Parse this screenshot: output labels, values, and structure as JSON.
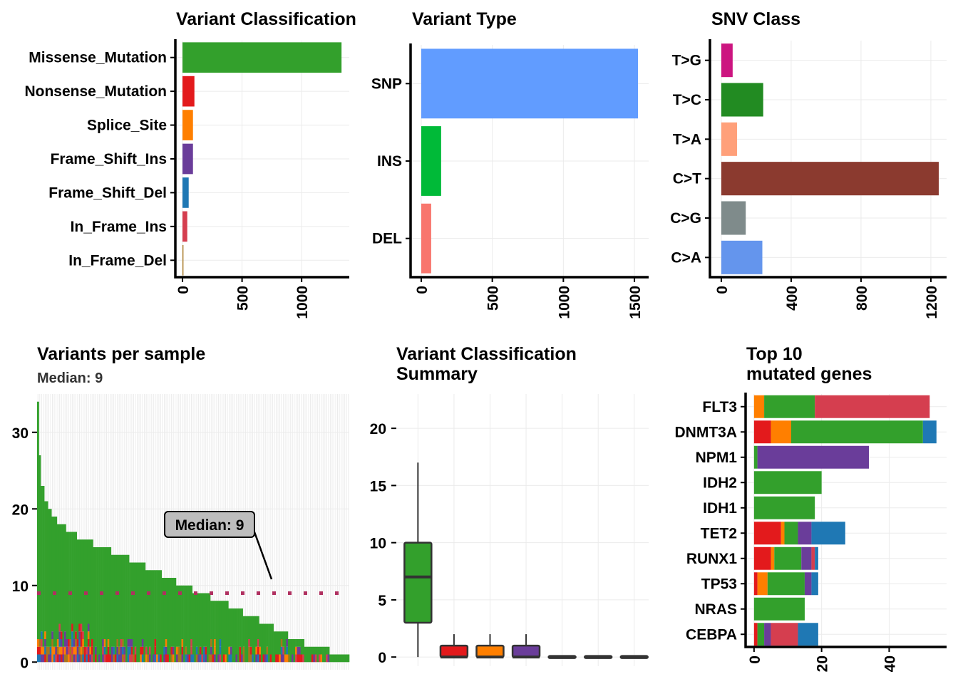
{
  "chart_data": [
    {
      "id": "variant_classification",
      "type": "bar",
      "title": "Variant Classification",
      "orientation": "horizontal",
      "categories": [
        "Missense_Mutation",
        "Nonsense_Mutation",
        "Splice_Site",
        "Frame_Shift_Ins",
        "Frame_Shift_Del",
        "In_Frame_Ins",
        "In_Frame_Del"
      ],
      "values": [
        1335,
        100,
        88,
        88,
        52,
        40,
        8
      ],
      "colors": [
        "#33A02C",
        "#E31A1C",
        "#FF7F00",
        "#6A3D9A",
        "#1F78B4",
        "#D53E4F",
        "#A6761D"
      ],
      "xticks": [
        0,
        500,
        1000
      ],
      "xlim": [
        -60,
        1400
      ],
      "grid": true
    },
    {
      "id": "variant_type",
      "type": "bar",
      "title": "Variant Type",
      "orientation": "horizontal",
      "categories": [
        "SNP",
        "INS",
        "DEL"
      ],
      "values": [
        1525,
        140,
        70
      ],
      "colors": [
        "#619CFF",
        "#00BA38",
        "#F8766D"
      ],
      "xticks": [
        0,
        500,
        1000,
        1500
      ],
      "xlim": [
        -75,
        1600
      ],
      "grid": true
    },
    {
      "id": "snv_class",
      "type": "bar",
      "title": "SNV Class",
      "orientation": "horizontal",
      "categories": [
        "T>G",
        "T>C",
        "T>A",
        "C>T",
        "C>G",
        "C>A"
      ],
      "values": [
        65,
        240,
        90,
        1245,
        140,
        235
      ],
      "colors": [
        "#CC1580",
        "#228B22",
        "#FFA07A",
        "#8B3A2F",
        "#7F8B8B",
        "#6495ED"
      ],
      "xticks": [
        0,
        400,
        800,
        1200
      ],
      "xlim": [
        -65,
        1290
      ],
      "grid": true
    },
    {
      "id": "variants_per_sample",
      "type": "bar",
      "title": "Variants per sample",
      "subtitle": "Median: 9",
      "annotation": "Median: 9",
      "median": 9,
      "yticks": [
        0,
        10,
        20,
        30
      ],
      "ylim": [
        -1,
        35
      ],
      "stacked": true,
      "n_samples": 193,
      "sample_totals_sorted": [
        34,
        27,
        23,
        21,
        20,
        19,
        18,
        17,
        16,
        15,
        14,
        13,
        12,
        11,
        10,
        9,
        8,
        7,
        6,
        5,
        4,
        3,
        2,
        1
      ],
      "sample_counts": [
        1,
        1,
        2,
        2,
        2,
        3,
        5,
        6,
        9,
        10,
        10,
        9,
        9,
        8,
        9,
        10,
        10,
        8,
        9,
        8,
        8,
        9,
        14,
        11
      ],
      "colors": {
        "Missense_Mutation": "#33A02C",
        "Nonsense_Mutation": "#E31A1C",
        "Splice_Site": "#FF7F00",
        "Frame_Shift_Ins": "#6A3D9A",
        "Frame_Shift_Del": "#1F78B4",
        "In_Frame_Ins": "#D53E4F",
        "In_Frame_Del": "#A6761D"
      },
      "grid": true
    },
    {
      "id": "variant_classification_summary",
      "type": "box",
      "title_lines": [
        "Variant Classification",
        "Summary"
      ],
      "yticks": [
        0,
        5,
        10,
        15,
        20
      ],
      "ylim": [
        -0.8,
        23
      ],
      "boxes": [
        {
          "category": "Missense_Mutation",
          "color": "#33A02C",
          "min": 0,
          "q1": 3,
          "median": 7,
          "q3": 10,
          "max": 17
        },
        {
          "category": "Nonsense_Mutation",
          "color": "#E31A1C",
          "min": 0,
          "q1": 0,
          "median": 0,
          "q3": 1,
          "max": 2
        },
        {
          "category": "Splice_Site",
          "color": "#FF7F00",
          "min": 0,
          "q1": 0,
          "median": 0,
          "q3": 1,
          "max": 2
        },
        {
          "category": "Frame_Shift_Ins",
          "color": "#6A3D9A",
          "min": 0,
          "q1": 0,
          "median": 0,
          "q3": 1,
          "max": 2
        },
        {
          "category": "Frame_Shift_Del",
          "color": "#1F78B4",
          "min": 0,
          "q1": 0,
          "median": 0,
          "q3": 0,
          "max": 0
        },
        {
          "category": "In_Frame_Ins",
          "color": "#D53E4F",
          "min": 0,
          "q1": 0,
          "median": 0,
          "q3": 0,
          "max": 0
        },
        {
          "category": "In_Frame_Del",
          "color": "#A6761D",
          "min": 0,
          "q1": 0,
          "median": 0,
          "q3": 0,
          "max": 0
        }
      ],
      "grid": true
    },
    {
      "id": "top_mutated_genes",
      "type": "bar",
      "title_lines": [
        "Top 10",
        "mutated genes"
      ],
      "orientation": "horizontal",
      "stacked": true,
      "categories": [
        "FLT3",
        "DNMT3A",
        "NPM1",
        "IDH2",
        "IDH1",
        "TET2",
        "RUNX1",
        "TP53",
        "NRAS",
        "CEBPA"
      ],
      "class_order": [
        "In_Frame_Del",
        "Nonsense_Mutation",
        "Splice_Site",
        "Missense_Mutation",
        "Frame_Shift_Ins",
        "In_Frame_Ins",
        "Frame_Shift_Del"
      ],
      "series": [
        {
          "name": "In_Frame_Del",
          "color": "#A6761D",
          "values": [
            0,
            0,
            0,
            0,
            0,
            0,
            0,
            0,
            0,
            0
          ]
        },
        {
          "name": "Nonsense_Mutation",
          "color": "#E31A1C",
          "values": [
            0,
            5,
            0,
            0,
            0,
            8,
            5,
            1,
            0,
            1
          ]
        },
        {
          "name": "Splice_Site",
          "color": "#FF7F00",
          "values": [
            3,
            6,
            0,
            0,
            0,
            1,
            1,
            3,
            0,
            0
          ]
        },
        {
          "name": "Missense_Mutation",
          "color": "#33A02C",
          "values": [
            15,
            39,
            1,
            20,
            18,
            4,
            8,
            11,
            15,
            2
          ]
        },
        {
          "name": "Frame_Shift_Ins",
          "color": "#6A3D9A",
          "values": [
            0,
            0,
            33,
            0,
            0,
            4,
            3,
            2,
            0,
            2
          ]
        },
        {
          "name": "In_Frame_Ins",
          "color": "#D53E4F",
          "values": [
            34,
            0,
            0,
            0,
            0,
            0,
            1,
            0,
            0,
            8
          ]
        },
        {
          "name": "Frame_Shift_Del",
          "color": "#1F78B4",
          "values": [
            0,
            4,
            0,
            0,
            0,
            10,
            1,
            2,
            0,
            6
          ]
        }
      ],
      "xticks": [
        0,
        20,
        40
      ],
      "xlim": [
        -2.5,
        57
      ],
      "grid": true
    }
  ]
}
